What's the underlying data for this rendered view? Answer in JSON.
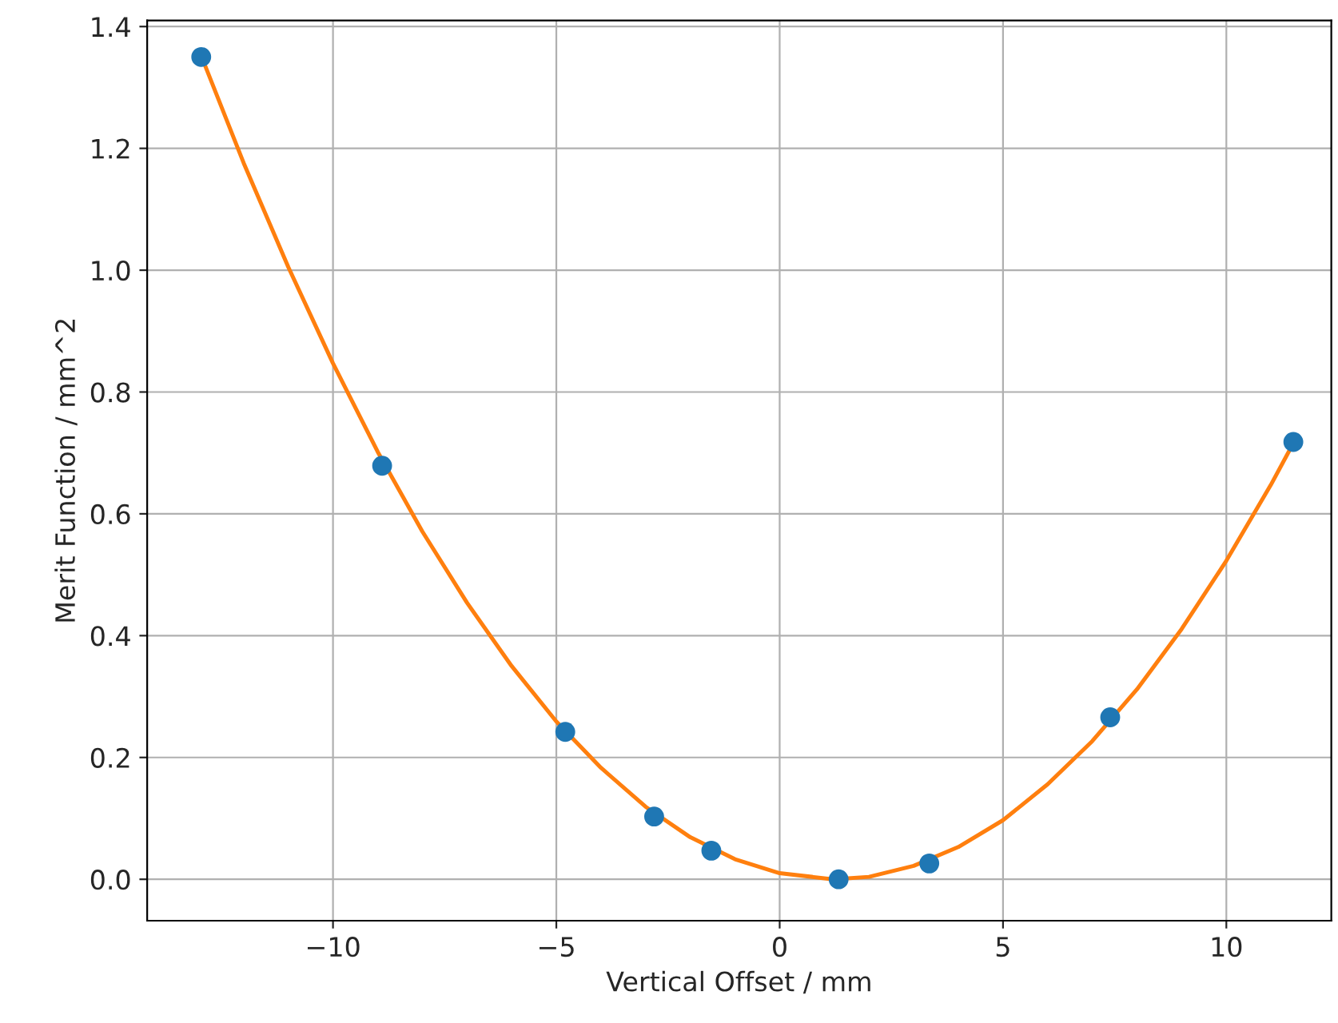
{
  "chart_data": {
    "type": "scatter",
    "xlabel": "Vertical Offset / mm",
    "ylabel": "Merit Function / mm^2",
    "series": [
      {
        "color": "#1f77b4",
        "x": [
          -12.95,
          -8.9,
          -4.8,
          -2.81,
          -1.53,
          1.32,
          3.35,
          7.4,
          11.5
        ],
        "values": [
          1.35,
          0.679,
          0.242,
          0.103,
          0.047,
          0.0,
          0.026,
          0.266,
          0.718
        ]
      },
      {
        "type": "line",
        "color": "#ff7f0e",
        "x": [
          -12.95,
          -12,
          -11,
          -10,
          -9,
          -8,
          -7,
          -6,
          -5,
          -4,
          -3,
          -2,
          -1,
          0,
          1.2,
          2,
          3,
          4,
          5,
          6,
          7,
          8,
          9,
          10,
          11,
          11.5
        ],
        "values": [
          1.352,
          1.176,
          1.005,
          0.847,
          0.702,
          0.571,
          0.454,
          0.35,
          0.259,
          0.183,
          0.119,
          0.069,
          0.033,
          0.01,
          0.0,
          0.004,
          0.022,
          0.053,
          0.097,
          0.156,
          0.227,
          0.312,
          0.411,
          0.523,
          0.648,
          0.716
        ]
      }
    ],
    "xlim": [
      -14.16,
      12.35
    ],
    "ylim": [
      -0.068,
      1.41
    ],
    "xticks": [
      {
        "value": -10,
        "label": "−10"
      },
      {
        "value": -5,
        "label": "−5"
      },
      0,
      5,
      10
    ],
    "yticks": [
      {
        "value": 0,
        "label": "0.0"
      },
      {
        "value": 0.2,
        "label": "0.2"
      },
      {
        "value": 0.4,
        "label": "0.4"
      },
      {
        "value": 0.6,
        "label": "0.6"
      },
      {
        "value": 0.8,
        "label": "0.8"
      },
      {
        "value": 1.0,
        "label": "1.0"
      },
      {
        "value": 1.2,
        "label": "1.2"
      },
      {
        "value": 1.4,
        "label": "1.4"
      }
    ],
    "grid": true
  }
}
